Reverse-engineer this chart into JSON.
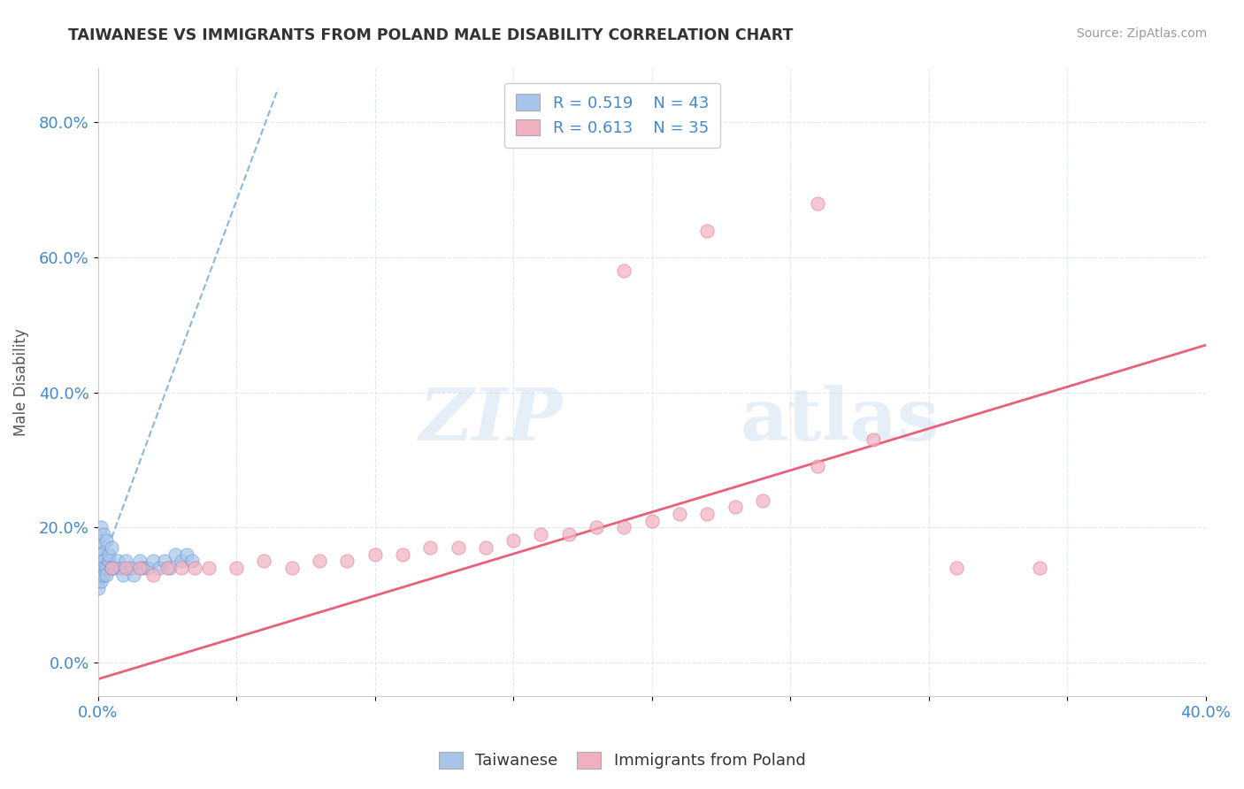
{
  "title": "TAIWANESE VS IMMIGRANTS FROM POLAND MALE DISABILITY CORRELATION CHART",
  "source": "Source: ZipAtlas.com",
  "ylabel": "Male Disability",
  "xlim": [
    0.0,
    0.4
  ],
  "ylim": [
    -0.05,
    0.88
  ],
  "taiwanese_color": "#a8c4e8",
  "taiwanese_edge": "#5090d0",
  "polish_color": "#f0b0c0",
  "polish_edge": "#e06080",
  "taiwanese_line_color": "#7ab0d8",
  "polish_line_color": "#e8607a",
  "r_taiwanese": 0.519,
  "n_taiwanese": 43,
  "r_polish": 0.613,
  "n_polish": 35,
  "taiwanese_points_x": [
    0.0,
    0.0,
    0.0,
    0.0,
    0.0,
    0.0,
    0.0,
    0.0,
    0.001,
    0.001,
    0.001,
    0.001,
    0.001,
    0.001,
    0.002,
    0.002,
    0.002,
    0.002,
    0.003,
    0.003,
    0.003,
    0.004,
    0.004,
    0.005,
    0.005,
    0.006,
    0.007,
    0.008,
    0.009,
    0.01,
    0.012,
    0.013,
    0.015,
    0.016,
    0.018,
    0.02,
    0.022,
    0.024,
    0.026,
    0.028,
    0.03,
    0.032,
    0.034
  ],
  "taiwanese_points_y": [
    0.14,
    0.15,
    0.16,
    0.17,
    0.18,
    0.13,
    0.12,
    0.11,
    0.14,
    0.15,
    0.13,
    0.16,
    0.12,
    0.2,
    0.15,
    0.14,
    0.13,
    0.19,
    0.14,
    0.13,
    0.18,
    0.15,
    0.16,
    0.14,
    0.17,
    0.14,
    0.15,
    0.14,
    0.13,
    0.15,
    0.14,
    0.13,
    0.15,
    0.14,
    0.14,
    0.15,
    0.14,
    0.15,
    0.14,
    0.16,
    0.15,
    0.16,
    0.15
  ],
  "polish_points_x": [
    0.005,
    0.01,
    0.015,
    0.02,
    0.025,
    0.03,
    0.035,
    0.04,
    0.05,
    0.06,
    0.07,
    0.08,
    0.09,
    0.1,
    0.11,
    0.12,
    0.13,
    0.14,
    0.15,
    0.16,
    0.17,
    0.18,
    0.19,
    0.2,
    0.21,
    0.22,
    0.23,
    0.24,
    0.26,
    0.28,
    0.19,
    0.22,
    0.26,
    0.31,
    0.34
  ],
  "polish_points_y": [
    0.14,
    0.14,
    0.14,
    0.13,
    0.14,
    0.14,
    0.14,
    0.14,
    0.14,
    0.15,
    0.14,
    0.15,
    0.15,
    0.16,
    0.16,
    0.17,
    0.17,
    0.17,
    0.18,
    0.19,
    0.19,
    0.2,
    0.2,
    0.21,
    0.22,
    0.22,
    0.23,
    0.24,
    0.29,
    0.33,
    0.58,
    0.64,
    0.68,
    0.14,
    0.14
  ],
  "watermark_line1": "ZIP",
  "watermark_line2": "atlas",
  "background_color": "#ffffff",
  "grid_color": "#dde8f0",
  "tw_line_x": [
    0.0,
    0.065
  ],
  "tw_line_y": [
    0.13,
    0.85
  ],
  "pl_line_x": [
    0.0,
    0.4
  ],
  "pl_line_y": [
    -0.025,
    0.47
  ]
}
